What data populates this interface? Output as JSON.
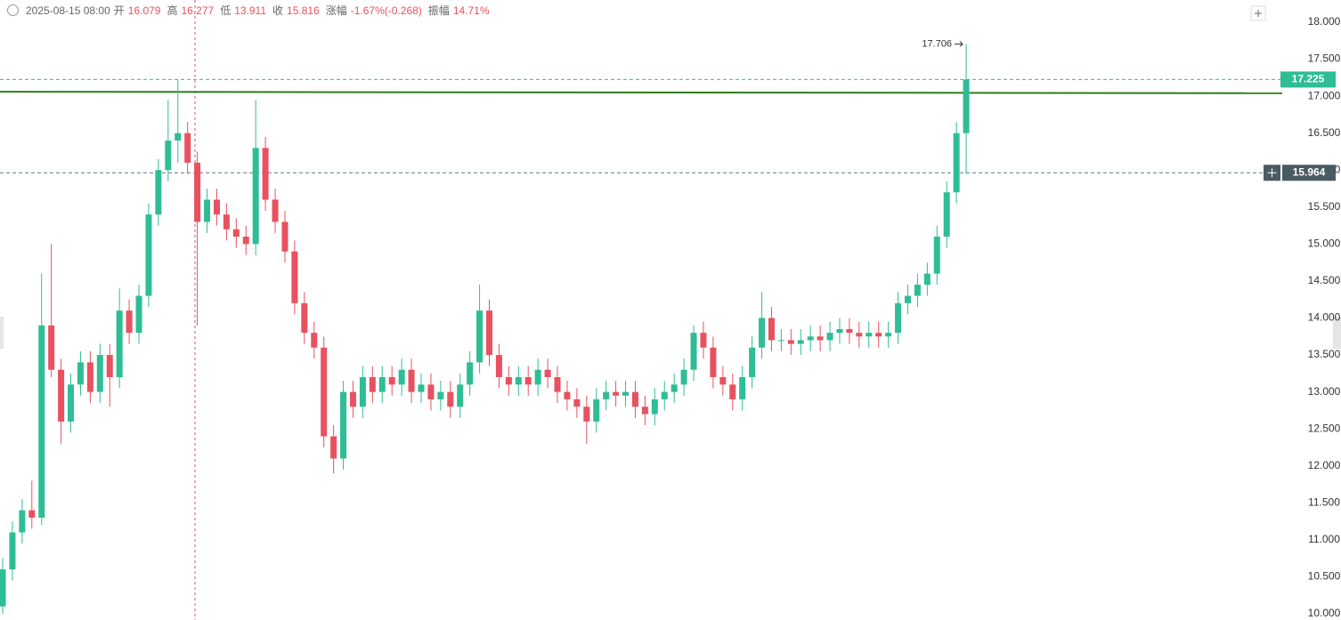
{
  "chart_data": {
    "type": "candlestick",
    "header": {
      "datetime": "2025-08-15 08:00",
      "items": [
        {
          "label": "开",
          "value": "16.079"
        },
        {
          "label": "高",
          "value": "16.277"
        },
        {
          "label": "低",
          "value": "13.911"
        },
        {
          "label": "收",
          "value": "15.816"
        },
        {
          "label": "涨幅",
          "value": "-1.67%(-0.268)"
        },
        {
          "label": "振幅",
          "value": "14.71%"
        }
      ]
    },
    "up_color": "#2ebd95",
    "down_color": "#e8515f",
    "ylim": [
      10,
      18
    ],
    "yticks": [
      {
        "value": 10,
        "label": "10.000"
      },
      {
        "value": 10.5,
        "label": "10.500"
      },
      {
        "value": 11,
        "label": "11.000"
      },
      {
        "value": 11.5,
        "label": "11.500"
      },
      {
        "value": 12,
        "label": "12.000"
      },
      {
        "value": 12.5,
        "label": "12.500"
      },
      {
        "value": 13,
        "label": "13.000"
      },
      {
        "value": 13.5,
        "label": "13.500"
      },
      {
        "value": 14,
        "label": "14.000"
      },
      {
        "value": 14.5,
        "label": "14.500"
      },
      {
        "value": 15,
        "label": "15.000"
      },
      {
        "value": 15.5,
        "label": "15.500"
      },
      {
        "value": 16,
        "label": "16.000"
      },
      {
        "value": 16.5,
        "label": "16.500"
      },
      {
        "value": 17,
        "label": "17.000"
      },
      {
        "value": 17.5,
        "label": "17.500"
      },
      {
        "value": 18,
        "label": "18.000"
      }
    ],
    "max_label": 17.706,
    "last_price": 17.225,
    "crosshair_price": 15.964,
    "trendline": [
      17.04,
      17.06
    ],
    "ohlc": [
      [
        10.1,
        10.75,
        10.0,
        10.6
      ],
      [
        10.6,
        11.25,
        10.45,
        11.1
      ],
      [
        11.1,
        11.55,
        10.95,
        11.4
      ],
      [
        11.4,
        11.8,
        11.15,
        11.3
      ],
      [
        11.3,
        14.6,
        11.2,
        13.9
      ],
      [
        13.9,
        15.0,
        13.2,
        13.3
      ],
      [
        13.3,
        13.45,
        12.3,
        12.6
      ],
      [
        12.6,
        13.25,
        12.45,
        13.1
      ],
      [
        13.1,
        13.55,
        12.95,
        13.4
      ],
      [
        13.4,
        13.55,
        12.85,
        13.0
      ],
      [
        13.0,
        13.65,
        12.85,
        13.5
      ],
      [
        13.5,
        13.65,
        12.8,
        13.2
      ],
      [
        13.2,
        14.4,
        13.05,
        14.1
      ],
      [
        14.1,
        14.25,
        13.65,
        13.8
      ],
      [
        13.8,
        14.45,
        13.65,
        14.3
      ],
      [
        14.3,
        15.55,
        14.15,
        15.4
      ],
      [
        15.4,
        16.15,
        15.25,
        16.0
      ],
      [
        16.0,
        16.95,
        15.85,
        16.4
      ],
      [
        16.4,
        17.22,
        16.1,
        16.5
      ],
      [
        16.5,
        16.65,
        15.95,
        16.1
      ],
      [
        16.1,
        16.25,
        13.9,
        15.3
      ],
      [
        15.3,
        15.75,
        15.15,
        15.6
      ],
      [
        15.6,
        15.75,
        15.25,
        15.4
      ],
      [
        15.4,
        15.55,
        15.05,
        15.2
      ],
      [
        15.2,
        15.35,
        14.95,
        15.1
      ],
      [
        15.1,
        15.25,
        14.85,
        15.0
      ],
      [
        15.0,
        16.95,
        14.85,
        16.3
      ],
      [
        16.3,
        16.45,
        15.45,
        15.6
      ],
      [
        15.6,
        15.75,
        15.15,
        15.3
      ],
      [
        15.3,
        15.45,
        14.75,
        14.9
      ],
      [
        14.9,
        15.05,
        14.05,
        14.2
      ],
      [
        14.2,
        14.35,
        13.65,
        13.8
      ],
      [
        13.8,
        13.95,
        13.45,
        13.6
      ],
      [
        13.6,
        13.75,
        12.25,
        12.4
      ],
      [
        12.4,
        12.55,
        11.9,
        12.1
      ],
      [
        12.1,
        13.15,
        11.95,
        13.0
      ],
      [
        13.0,
        13.15,
        12.65,
        12.8
      ],
      [
        12.8,
        13.35,
        12.65,
        13.2
      ],
      [
        13.2,
        13.35,
        12.85,
        13.0
      ],
      [
        13.0,
        13.35,
        12.85,
        13.2
      ],
      [
        13.2,
        13.35,
        12.95,
        13.1
      ],
      [
        13.1,
        13.45,
        12.95,
        13.3
      ],
      [
        13.3,
        13.45,
        12.85,
        13.0
      ],
      [
        13.0,
        13.25,
        12.85,
        13.1
      ],
      [
        13.1,
        13.25,
        12.75,
        12.9
      ],
      [
        12.9,
        13.15,
        12.75,
        13.0
      ],
      [
        13.0,
        13.15,
        12.65,
        12.8
      ],
      [
        12.8,
        13.25,
        12.65,
        13.1
      ],
      [
        13.1,
        13.55,
        12.95,
        13.4
      ],
      [
        13.4,
        14.45,
        13.25,
        14.1
      ],
      [
        14.1,
        14.25,
        13.35,
        13.5
      ],
      [
        13.5,
        13.65,
        13.05,
        13.2
      ],
      [
        13.2,
        13.35,
        12.95,
        13.1
      ],
      [
        13.1,
        13.35,
        12.95,
        13.2
      ],
      [
        13.2,
        13.35,
        12.95,
        13.1
      ],
      [
        13.1,
        13.45,
        12.95,
        13.3
      ],
      [
        13.3,
        13.45,
        13.05,
        13.2
      ],
      [
        13.2,
        13.35,
        12.85,
        13.0
      ],
      [
        13.0,
        13.15,
        12.75,
        12.9
      ],
      [
        12.9,
        13.05,
        12.65,
        12.8
      ],
      [
        12.8,
        12.95,
        12.3,
        12.6
      ],
      [
        12.6,
        13.05,
        12.45,
        12.9
      ],
      [
        12.9,
        13.15,
        12.75,
        13.0
      ],
      [
        13.0,
        13.15,
        12.8,
        12.95
      ],
      [
        12.95,
        13.15,
        12.8,
        13.0
      ],
      [
        13.0,
        13.15,
        12.65,
        12.8
      ],
      [
        12.8,
        12.95,
        12.55,
        12.7
      ],
      [
        12.7,
        13.05,
        12.55,
        12.9
      ],
      [
        12.9,
        13.15,
        12.75,
        13.0
      ],
      [
        13.0,
        13.25,
        12.85,
        13.1
      ],
      [
        13.1,
        13.45,
        12.95,
        13.3
      ],
      [
        13.3,
        13.9,
        13.15,
        13.8
      ],
      [
        13.8,
        13.95,
        13.45,
        13.6
      ],
      [
        13.6,
        13.75,
        13.05,
        13.2
      ],
      [
        13.2,
        13.35,
        12.95,
        13.1
      ],
      [
        13.1,
        13.25,
        12.75,
        12.9
      ],
      [
        12.9,
        13.35,
        12.75,
        13.2
      ],
      [
        13.2,
        13.75,
        13.05,
        13.6
      ],
      [
        13.6,
        14.35,
        13.45,
        14.0
      ],
      [
        14.0,
        14.15,
        13.55,
        13.7
      ],
      [
        13.7,
        13.85,
        13.55,
        13.7
      ],
      [
        13.7,
        13.85,
        13.5,
        13.65
      ],
      [
        13.65,
        13.85,
        13.5,
        13.7
      ],
      [
        13.7,
        13.9,
        13.55,
        13.75
      ],
      [
        13.75,
        13.9,
        13.55,
        13.7
      ],
      [
        13.7,
        13.95,
        13.55,
        13.8
      ],
      [
        13.8,
        14.0,
        13.65,
        13.85
      ],
      [
        13.85,
        14.0,
        13.65,
        13.8
      ],
      [
        13.8,
        13.95,
        13.6,
        13.75
      ],
      [
        13.75,
        13.95,
        13.6,
        13.8
      ],
      [
        13.8,
        13.95,
        13.6,
        13.75
      ],
      [
        13.75,
        13.95,
        13.6,
        13.8
      ],
      [
        13.8,
        14.35,
        13.65,
        14.2
      ],
      [
        14.2,
        14.45,
        14.05,
        14.3
      ],
      [
        14.3,
        14.6,
        14.15,
        14.45
      ],
      [
        14.45,
        14.75,
        14.3,
        14.6
      ],
      [
        14.6,
        15.25,
        14.45,
        15.1
      ],
      [
        15.1,
        15.85,
        14.95,
        15.7
      ],
      [
        15.7,
        16.65,
        15.55,
        16.5
      ],
      [
        16.5,
        17.706,
        15.95,
        17.225
      ]
    ]
  }
}
